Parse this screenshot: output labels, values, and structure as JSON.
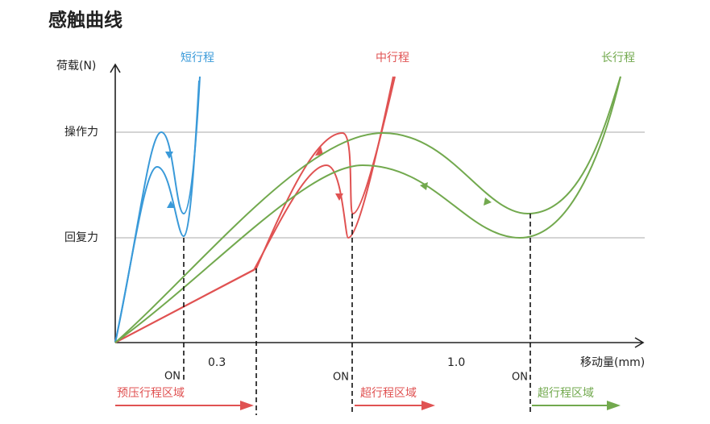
{
  "title": "感触曲线",
  "y_axis_label": "荷载(N)",
  "levels": [
    "操作力",
    "回复力"
  ],
  "curves": [
    "短行程",
    "中行程",
    "长行程"
  ],
  "x_labels": [
    "0.3",
    "1.0"
  ],
  "x_axis_label": "移动量(mm)",
  "on_labels": [
    "ON",
    "ON",
    "ON"
  ],
  "regions": [
    "预压行程区域",
    "超行程区域",
    "超行程区域"
  ]
}
